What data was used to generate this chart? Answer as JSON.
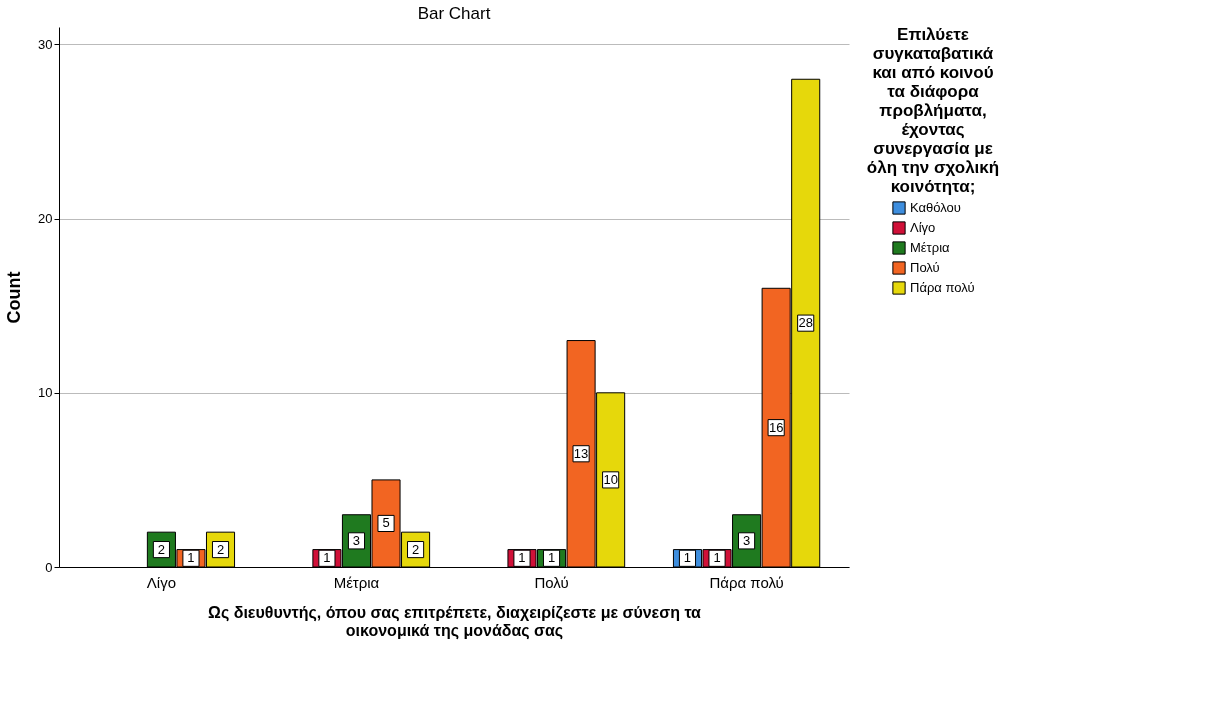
{
  "chart_data": {
    "type": "bar",
    "title": "Bar Chart",
    "xlabel": "Ως διευθυντής, όπου σας επιτρέπετε, διαχειρίζεστε με σύνεση τα οικονομικά της μονάδας σας",
    "ylabel": "Count",
    "legend_title": "Επιλύετε συγκαταβατικά και από κοινού τα διάφορα προβλήματα, έχοντας συνεργασία με όλη την σχολική κοινότητα;",
    "categories": [
      "Λίγο",
      "Μέτρια",
      "Πολύ",
      "Πάρα πολύ"
    ],
    "series": [
      {
        "name": "Καθόλου",
        "color": "#3e8ede",
        "values": [
          null,
          null,
          null,
          1
        ]
      },
      {
        "name": "Λίγο",
        "color": "#d01038",
        "values": [
          null,
          1,
          1,
          1
        ]
      },
      {
        "name": "Μέτρια",
        "color": "#1f7a1f",
        "values": [
          2,
          3,
          1,
          3
        ]
      },
      {
        "name": "Πολύ",
        "color": "#f26522",
        "values": [
          1,
          5,
          13,
          16
        ]
      },
      {
        "name": "Πάρα πολύ",
        "color": "#e6d80b",
        "values": [
          2,
          2,
          10,
          28
        ]
      }
    ],
    "ylim": [
      0,
      31
    ],
    "yticks": [
      0,
      10,
      20,
      30
    ],
    "grid": "y",
    "legend": "right",
    "data_labels": true
  }
}
